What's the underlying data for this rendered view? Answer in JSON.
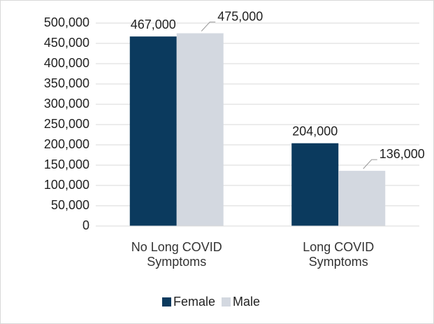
{
  "chart_data": {
    "type": "bar",
    "categories": [
      "No Long COVID Symptoms",
      "Long COVID Symptoms"
    ],
    "series": [
      {
        "name": "Female",
        "color": "#0b3a5e",
        "values": [
          467000,
          204000
        ],
        "value_labels": [
          "467,000",
          "204,000"
        ]
      },
      {
        "name": "Male",
        "color": "#d3d8e0",
        "values": [
          475000,
          136000
        ],
        "value_labels": [
          "475,000",
          "136,000"
        ]
      }
    ],
    "ylim": [
      0,
      500000
    ],
    "yticks": [
      0,
      {
        "value": 50000,
        "label": "50,000"
      },
      {
        "value": 100000,
        "label": "100,000"
      },
      {
        "value": 150000,
        "label": "150,000"
      },
      {
        "value": 200000,
        "label": "200,000"
      },
      {
        "value": 250000,
        "label": "250,000"
      },
      {
        "value": 300000,
        "label": "300,000"
      },
      {
        "value": 350000,
        "label": "350,000"
      },
      {
        "value": 400000,
        "label": "400,000"
      },
      {
        "value": 450000,
        "label": "450,000"
      },
      {
        "value": 500000,
        "label": "500,000"
      }
    ],
    "grid": true,
    "legend": "bottom"
  }
}
